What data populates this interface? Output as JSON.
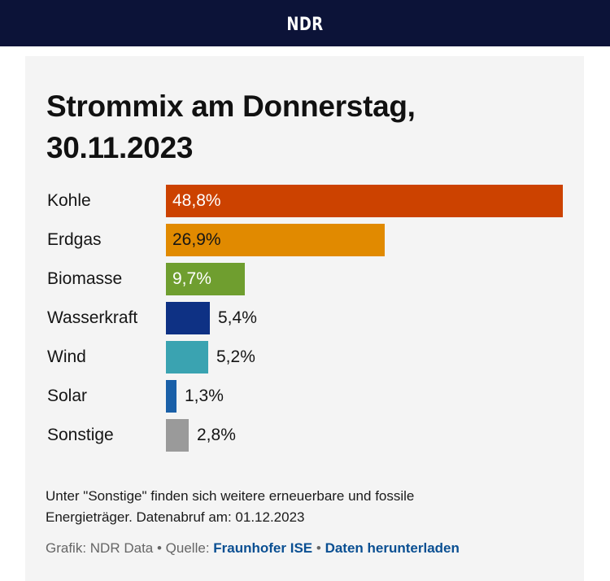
{
  "header": {
    "logo": "NDR"
  },
  "chart_data": {
    "type": "bar",
    "orientation": "horizontal",
    "title_line1": "Strommix am Donnerstag,",
    "title_line2": "30.11.2023",
    "categories": [
      "Kohle",
      "Erdgas",
      "Biomasse",
      "Wasserkraft",
      "Wind",
      "Solar",
      "Sonstige"
    ],
    "values": [
      48.8,
      26.9,
      9.7,
      5.4,
      5.2,
      1.3,
      2.8
    ],
    "value_labels": [
      "48,8%",
      "26,9%",
      "9,7%",
      "5,4%",
      "5,2%",
      "1,3%",
      "2,8%"
    ],
    "unit": "%",
    "colors": [
      "#cc4200",
      "#e18a00",
      "#6f9e2f",
      "#0e3184",
      "#3aa3b1",
      "#1a60a8",
      "#9a9a9a"
    ],
    "label_colors": [
      "#ffffff",
      "#151515",
      "#ffffff",
      "#151515",
      "#151515",
      "#151515",
      "#151515"
    ],
    "xlim": [
      0,
      48.8
    ],
    "grid": false,
    "legend": "none"
  },
  "footer": {
    "note_line1": "Unter \"Sonstige\" finden sich weitere erneuerbare und fossile",
    "note_line2": "Energieträger. Datenabruf am: 01.12.2023",
    "credit_prefix": "Grafik: NDR Data",
    "separator": "•",
    "source_prefix": "Quelle:",
    "source_link": "Fraunhofer ISE",
    "download_link": "Daten herunterladen"
  }
}
